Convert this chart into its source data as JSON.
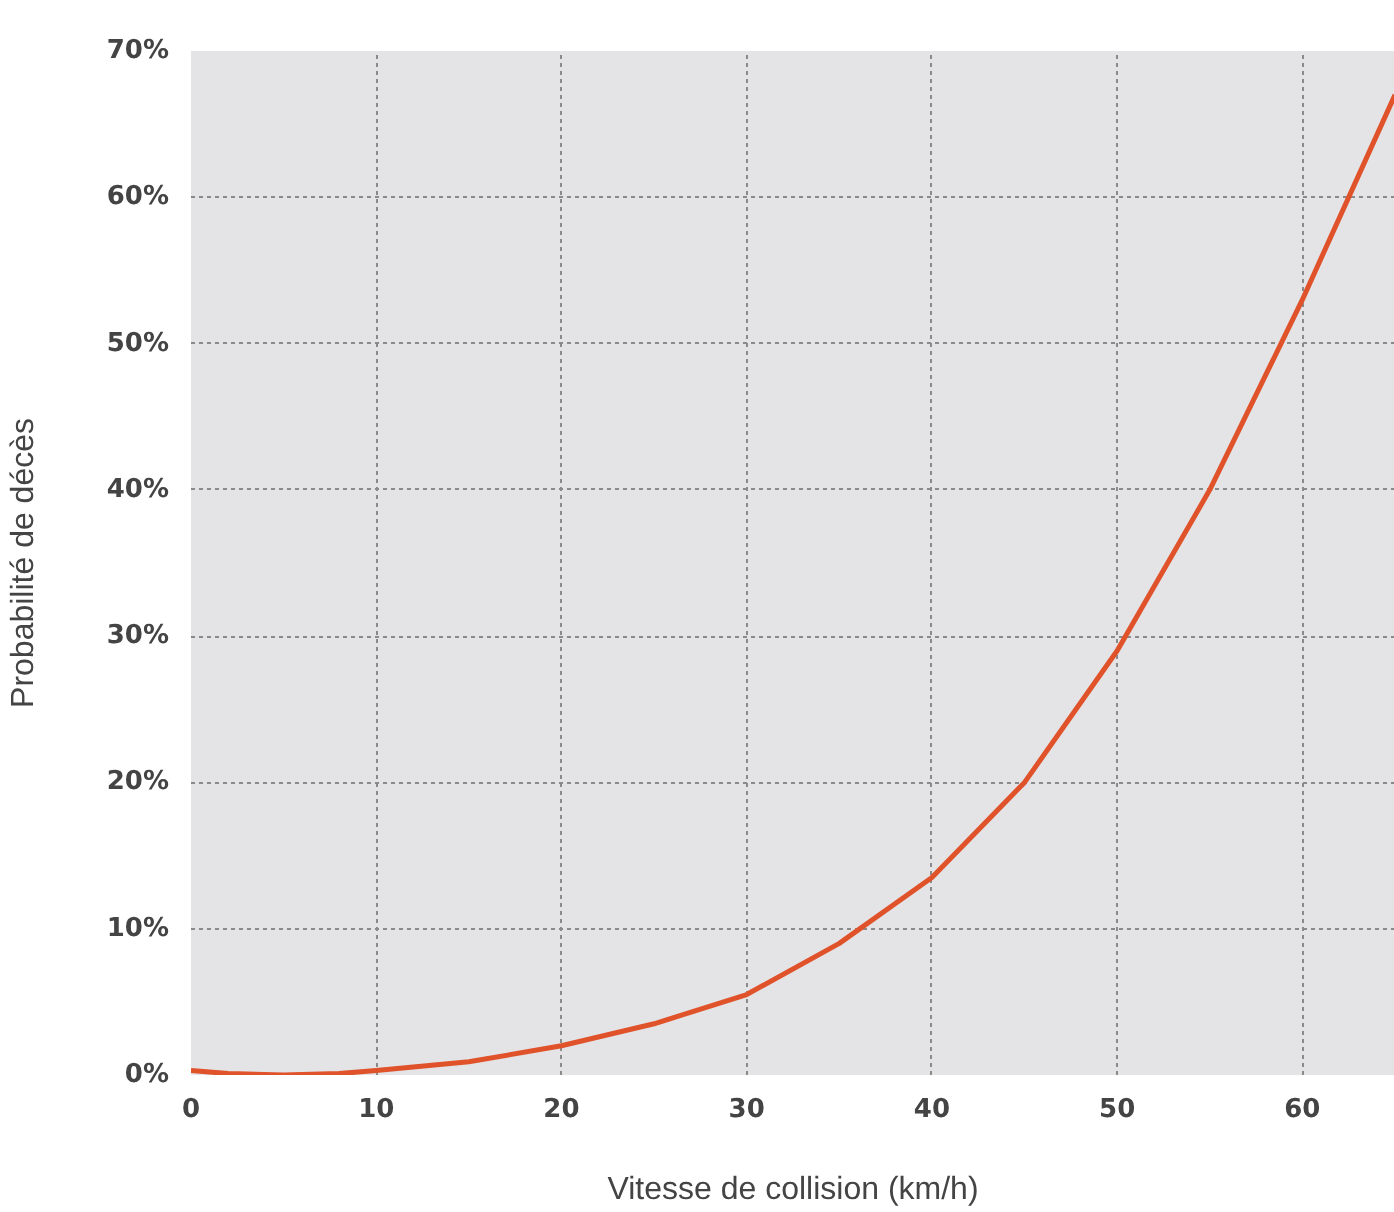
{
  "chart_data": {
    "type": "line",
    "xlabel": "Vitesse de collision (km/h)",
    "ylabel": "Probabilité de décès",
    "x": [
      0,
      2,
      5,
      8,
      10,
      15,
      20,
      25,
      30,
      35,
      40,
      45,
      50,
      55,
      60,
      65
    ],
    "series": [
      {
        "color": "#e0522a",
        "values": [
          0.3,
          0.1,
          0,
          0.1,
          0.3,
          0.9,
          2,
          3.5,
          5.5,
          9,
          13.5,
          20,
          29,
          40,
          53,
          67
        ]
      }
    ],
    "xlim": [
      0,
      65
    ],
    "ylim": [
      0,
      70
    ],
    "xticks": [
      0,
      10,
      20,
      30,
      40,
      50,
      60
    ],
    "yticks": [
      {
        "value": 0,
        "label": "0%"
      },
      {
        "value": 10,
        "label": "10%"
      },
      {
        "value": 20,
        "label": "20%"
      },
      {
        "value": 30,
        "label": "30%"
      },
      {
        "value": 40,
        "label": "40%"
      },
      {
        "value": 50,
        "label": "50%"
      },
      {
        "value": 60,
        "label": "60%"
      },
      {
        "value": 70,
        "label": "70%"
      }
    ],
    "grid": true,
    "line_style": "solid"
  }
}
